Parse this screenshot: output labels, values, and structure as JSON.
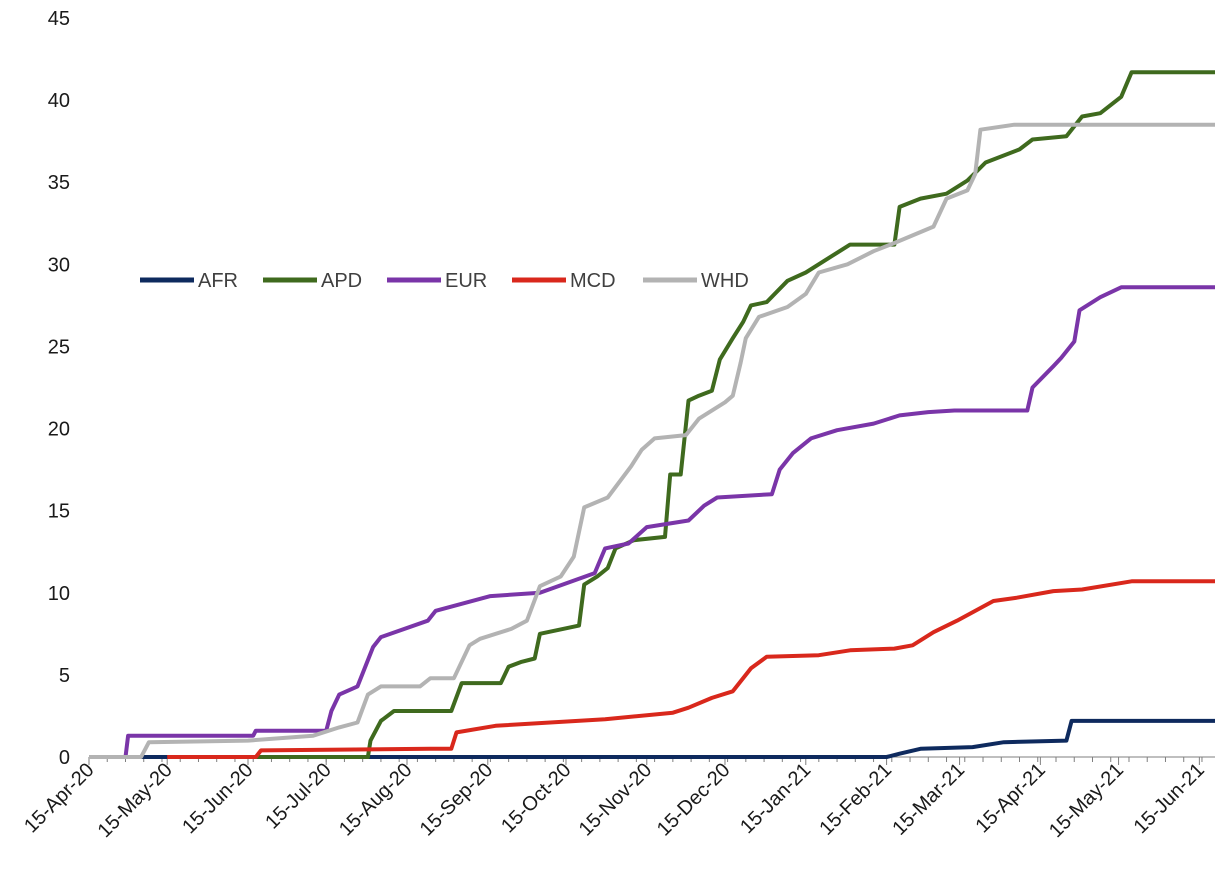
{
  "chart_data": {
    "type": "line",
    "title": "",
    "xlabel": "",
    "ylabel": "",
    "x_tick_labels": [
      "15-Apr-20",
      "15-May-20",
      "15-Jun-20",
      "15-Jul-20",
      "15-Aug-20",
      "15-Sep-20",
      "15-Oct-20",
      "15-Nov-20",
      "15-Dec-20",
      "15-Jan-21",
      "15-Feb-21",
      "15-Mar-21",
      "15-Apr-21",
      "15-May-21",
      "15-Jun-21"
    ],
    "x_tick_dates": [
      "2020-04-15",
      "2020-05-15",
      "2020-06-15",
      "2020-07-15",
      "2020-08-15",
      "2020-09-15",
      "2020-10-15",
      "2020-11-15",
      "2020-12-15",
      "2021-01-15",
      "2021-02-15",
      "2021-03-15",
      "2021-04-15",
      "2021-05-15",
      "2021-06-15"
    ],
    "xlim": [
      "2020-04-15",
      "2021-06-21"
    ],
    "ylim": [
      0,
      45
    ],
    "y_ticks": [
      0,
      5,
      10,
      15,
      20,
      25,
      30,
      35,
      40,
      45
    ],
    "grid": false,
    "legend_position": "center-left",
    "series": [
      {
        "name": "AFR",
        "color": "#0e2a5e",
        "points": [
          [
            "2020-04-15",
            0
          ],
          [
            "2021-02-15",
            0
          ],
          [
            "2021-02-20",
            0.2
          ],
          [
            "2021-02-28",
            0.5
          ],
          [
            "2021-03-20",
            0.6
          ],
          [
            "2021-04-01",
            0.9
          ],
          [
            "2021-04-25",
            1.0
          ],
          [
            "2021-04-27",
            2.2
          ],
          [
            "2021-06-21",
            2.2
          ]
        ]
      },
      {
        "name": "APD",
        "color": "#3f6a1e",
        "points": [
          [
            "2020-06-01",
            0
          ],
          [
            "2020-07-31",
            0
          ],
          [
            "2020-08-01",
            1.0
          ],
          [
            "2020-08-05",
            2.2
          ],
          [
            "2020-08-10",
            2.8
          ],
          [
            "2020-09-01",
            2.8
          ],
          [
            "2020-09-05",
            4.5
          ],
          [
            "2020-09-20",
            4.5
          ],
          [
            "2020-09-23",
            5.5
          ],
          [
            "2020-09-28",
            5.8
          ],
          [
            "2020-10-03",
            6.0
          ],
          [
            "2020-10-05",
            7.5
          ],
          [
            "2020-10-20",
            8.0
          ],
          [
            "2020-10-22",
            10.5
          ],
          [
            "2020-10-27",
            11.0
          ],
          [
            "2020-10-31",
            11.5
          ],
          [
            "2020-11-03",
            12.7
          ],
          [
            "2020-11-10",
            13.2
          ],
          [
            "2020-11-22",
            13.4
          ],
          [
            "2020-11-24",
            17.2
          ],
          [
            "2020-11-28",
            17.2
          ],
          [
            "2020-12-01",
            21.7
          ],
          [
            "2020-12-05",
            22.0
          ],
          [
            "2020-12-10",
            22.3
          ],
          [
            "2020-12-13",
            24.2
          ],
          [
            "2020-12-18",
            25.5
          ],
          [
            "2020-12-22",
            26.5
          ],
          [
            "2020-12-25",
            27.5
          ],
          [
            "2020-12-31",
            27.7
          ],
          [
            "2021-01-08",
            29.0
          ],
          [
            "2021-01-15",
            29.5
          ],
          [
            "2021-01-25",
            30.5
          ],
          [
            "2021-02-01",
            31.2
          ],
          [
            "2021-02-18",
            31.2
          ],
          [
            "2021-02-20",
            33.5
          ],
          [
            "2021-02-28",
            34.0
          ],
          [
            "2021-03-10",
            34.3
          ],
          [
            "2021-03-18",
            35.1
          ],
          [
            "2021-03-25",
            36.2
          ],
          [
            "2021-04-07",
            37.0
          ],
          [
            "2021-04-12",
            37.6
          ],
          [
            "2021-04-25",
            37.8
          ],
          [
            "2021-05-01",
            39.0
          ],
          [
            "2021-05-08",
            39.2
          ],
          [
            "2021-05-16",
            40.2
          ],
          [
            "2021-05-20",
            41.7
          ],
          [
            "2021-06-21",
            41.7
          ]
        ]
      },
      {
        "name": "EUR",
        "color": "#7a35a8",
        "points": [
          [
            "2020-04-15",
            0
          ],
          [
            "2020-04-29",
            0
          ],
          [
            "2020-04-30",
            1.3
          ],
          [
            "2020-06-17",
            1.3
          ],
          [
            "2020-06-18",
            1.6
          ],
          [
            "2020-07-15",
            1.6
          ],
          [
            "2020-07-17",
            2.8
          ],
          [
            "2020-07-20",
            3.8
          ],
          [
            "2020-07-27",
            4.3
          ],
          [
            "2020-08-02",
            6.7
          ],
          [
            "2020-08-05",
            7.3
          ],
          [
            "2020-08-23",
            8.3
          ],
          [
            "2020-08-26",
            8.9
          ],
          [
            "2020-09-16",
            9.8
          ],
          [
            "2020-10-05",
            10.0
          ],
          [
            "2020-10-26",
            11.2
          ],
          [
            "2020-10-30",
            12.7
          ],
          [
            "2020-11-08",
            13.0
          ],
          [
            "2020-11-15",
            14.0
          ],
          [
            "2020-12-01",
            14.4
          ],
          [
            "2020-12-07",
            15.3
          ],
          [
            "2020-12-12",
            15.8
          ],
          [
            "2021-01-02",
            16.0
          ],
          [
            "2021-01-05",
            17.5
          ],
          [
            "2021-01-10",
            18.5
          ],
          [
            "2021-01-17",
            19.4
          ],
          [
            "2021-01-27",
            19.9
          ],
          [
            "2021-02-10",
            20.3
          ],
          [
            "2021-02-20",
            20.8
          ],
          [
            "2021-03-03",
            21.0
          ],
          [
            "2021-03-13",
            21.1
          ],
          [
            "2021-04-10",
            21.1
          ],
          [
            "2021-04-12",
            22.5
          ],
          [
            "2021-04-20",
            23.8
          ],
          [
            "2021-04-23",
            24.3
          ],
          [
            "2021-04-28",
            25.3
          ],
          [
            "2021-04-30",
            27.2
          ],
          [
            "2021-05-08",
            28.0
          ],
          [
            "2021-05-16",
            28.6
          ],
          [
            "2021-06-21",
            28.6
          ]
        ]
      },
      {
        "name": "MCD",
        "color": "#d9281c",
        "points": [
          [
            "2020-05-15",
            0
          ],
          [
            "2020-06-18",
            0
          ],
          [
            "2020-06-20",
            0.4
          ],
          [
            "2020-08-24",
            0.5
          ],
          [
            "2020-09-01",
            0.5
          ],
          [
            "2020-09-03",
            1.5
          ],
          [
            "2020-09-18",
            1.9
          ],
          [
            "2020-10-30",
            2.3
          ],
          [
            "2020-11-25",
            2.7
          ],
          [
            "2020-12-01",
            3.0
          ],
          [
            "2020-12-10",
            3.6
          ],
          [
            "2020-12-18",
            4.0
          ],
          [
            "2020-12-25",
            5.4
          ],
          [
            "2020-12-31",
            6.1
          ],
          [
            "2021-01-20",
            6.2
          ],
          [
            "2021-02-01",
            6.5
          ],
          [
            "2021-02-18",
            6.6
          ],
          [
            "2021-02-25",
            6.8
          ],
          [
            "2021-03-05",
            7.6
          ],
          [
            "2021-03-14",
            8.3
          ],
          [
            "2021-03-28",
            9.5
          ],
          [
            "2021-04-06",
            9.7
          ],
          [
            "2021-04-20",
            10.1
          ],
          [
            "2021-05-01",
            10.2
          ],
          [
            "2021-05-20",
            10.7
          ],
          [
            "2021-06-21",
            10.7
          ]
        ]
      },
      {
        "name": "WHD",
        "color": "#b3b3b3",
        "points": [
          [
            "2020-04-15",
            0
          ],
          [
            "2020-05-05",
            0
          ],
          [
            "2020-05-08",
            0.9
          ],
          [
            "2020-06-15",
            1.0
          ],
          [
            "2020-07-10",
            1.3
          ],
          [
            "2020-07-20",
            1.8
          ],
          [
            "2020-07-27",
            2.1
          ],
          [
            "2020-07-31",
            3.8
          ],
          [
            "2020-08-05",
            4.3
          ],
          [
            "2020-08-20",
            4.3
          ],
          [
            "2020-08-24",
            4.8
          ],
          [
            "2020-09-02",
            4.8
          ],
          [
            "2020-09-08",
            6.8
          ],
          [
            "2020-09-12",
            7.2
          ],
          [
            "2020-09-24",
            7.8
          ],
          [
            "2020-09-30",
            8.3
          ],
          [
            "2020-10-05",
            10.4
          ],
          [
            "2020-10-13",
            11.0
          ],
          [
            "2020-10-18",
            12.2
          ],
          [
            "2020-10-22",
            15.2
          ],
          [
            "2020-10-31",
            15.8
          ],
          [
            "2020-11-09",
            17.7
          ],
          [
            "2020-11-13",
            18.7
          ],
          [
            "2020-11-18",
            19.4
          ],
          [
            "2020-11-30",
            19.6
          ],
          [
            "2020-12-05",
            20.6
          ],
          [
            "2020-12-15",
            21.6
          ],
          [
            "2020-12-18",
            22.0
          ],
          [
            "2020-12-21",
            24.0
          ],
          [
            "2020-12-23",
            25.5
          ],
          [
            "2020-12-28",
            26.8
          ],
          [
            "2021-01-08",
            27.4
          ],
          [
            "2021-01-15",
            28.2
          ],
          [
            "2021-01-20",
            29.5
          ],
          [
            "2021-01-31",
            30.0
          ],
          [
            "2021-02-10",
            30.8
          ],
          [
            "2021-02-18",
            31.3
          ],
          [
            "2021-03-05",
            32.3
          ],
          [
            "2021-03-10",
            34.0
          ],
          [
            "2021-03-18",
            34.5
          ],
          [
            "2021-03-21",
            35.5
          ],
          [
            "2021-03-23",
            38.2
          ],
          [
            "2021-04-05",
            38.5
          ],
          [
            "2021-06-21",
            38.5
          ]
        ]
      }
    ]
  }
}
